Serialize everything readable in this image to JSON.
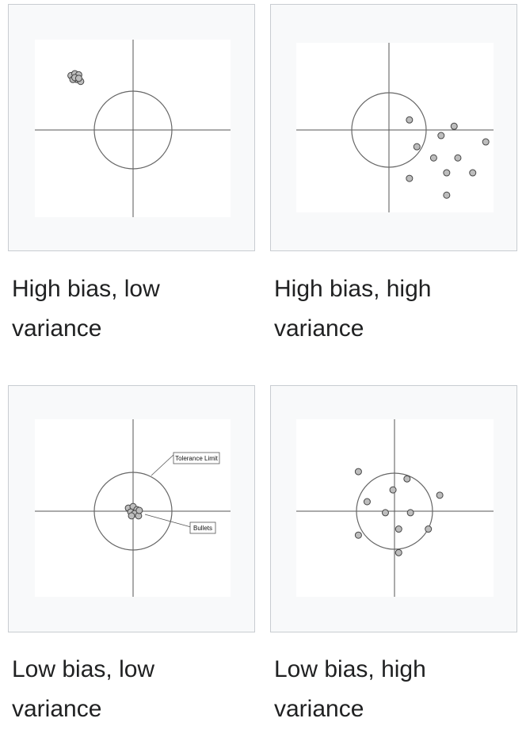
{
  "panels": [
    {
      "caption": "High bias, low variance",
      "shots": [
        [
          -1.6,
          1.4
        ],
        [
          -1.5,
          1.45
        ],
        [
          -1.4,
          1.42
        ],
        [
          -1.45,
          1.3
        ],
        [
          -1.35,
          1.25
        ],
        [
          -1.55,
          1.3
        ],
        [
          -1.5,
          1.35
        ],
        [
          -1.4,
          1.33
        ]
      ]
    },
    {
      "caption": "High bias, high variance",
      "shots": [
        [
          0.55,
          0.27
        ],
        [
          1.75,
          0.1
        ],
        [
          1.4,
          -0.15
        ],
        [
          2.6,
          -0.32
        ],
        [
          0.75,
          -0.45
        ],
        [
          1.2,
          -0.75
        ],
        [
          1.85,
          -0.75
        ],
        [
          1.55,
          -1.15
        ],
        [
          2.25,
          -1.15
        ],
        [
          0.55,
          -1.3
        ],
        [
          1.55,
          -1.75
        ]
      ]
    },
    {
      "caption": "Low bias, low variance",
      "shots": [
        [
          -0.12,
          0.08
        ],
        [
          0.0,
          0.12
        ],
        [
          0.1,
          0.04
        ],
        [
          -0.06,
          -0.02
        ],
        [
          0.04,
          -0.06
        ],
        [
          0.14,
          -0.12
        ],
        [
          -0.04,
          -0.12
        ],
        [
          0.16,
          0.02
        ]
      ],
      "callouts": [
        {
          "label": "Tolerance Limit"
        },
        {
          "label": "Bullets"
        }
      ]
    },
    {
      "caption": "Low bias, high variance",
      "shots": [
        [
          -0.95,
          1.04
        ],
        [
          0.33,
          0.85
        ],
        [
          -0.04,
          0.56
        ],
        [
          1.19,
          0.42
        ],
        [
          -0.72,
          0.25
        ],
        [
          -0.24,
          -0.04
        ],
        [
          0.42,
          -0.04
        ],
        [
          0.11,
          -0.47
        ],
        [
          0.89,
          -0.47
        ],
        [
          -0.95,
          -0.63
        ],
        [
          0.11,
          -1.09
        ]
      ]
    }
  ]
}
